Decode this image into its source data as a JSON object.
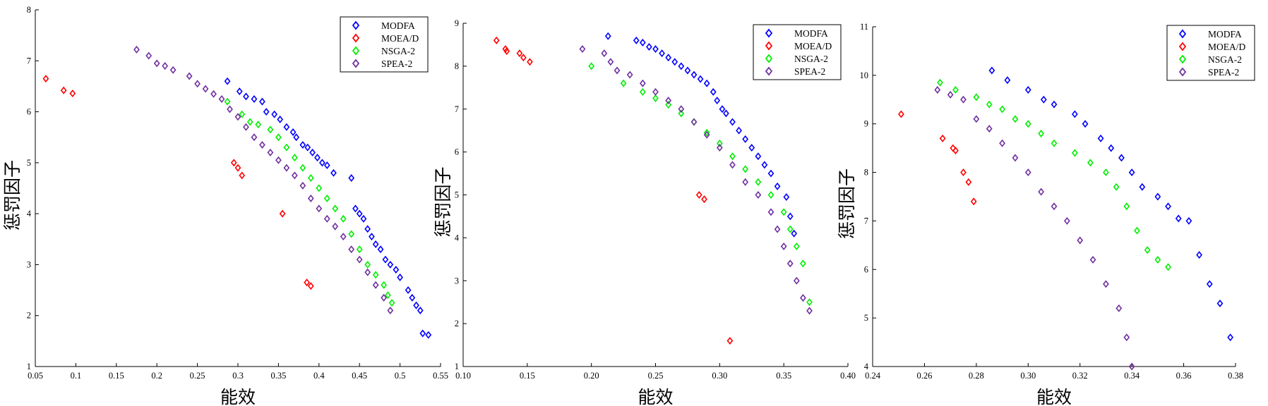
{
  "chart_data": [
    {
      "type": "scatter",
      "xlabel": "能效",
      "ylabel": "惩罚因子",
      "xlim": [
        0.05,
        0.55
      ],
      "ylim": [
        1,
        8
      ],
      "xticks": [
        "0.05",
        "0.1",
        "0.15",
        "0.2",
        "0.25",
        "0.3",
        "0.35",
        "0.4",
        "0.45",
        "0.5",
        "0.55"
      ],
      "yticks": [
        "1",
        "2",
        "3",
        "4",
        "5",
        "6",
        "7",
        "8"
      ],
      "grid": false,
      "legend": "top-right",
      "series": [
        {
          "name": "MODFA",
          "color": "#0000ff",
          "x": [
            0.287,
            0.302,
            0.31,
            0.32,
            0.33,
            0.335,
            0.345,
            0.352,
            0.36,
            0.368,
            0.372,
            0.38,
            0.386,
            0.392,
            0.398,
            0.404,
            0.41,
            0.418,
            0.44,
            0.445,
            0.45,
            0.455,
            0.46,
            0.465,
            0.47,
            0.476,
            0.482,
            0.488,
            0.495,
            0.5,
            0.51,
            0.515,
            0.52,
            0.525,
            0.528,
            0.535
          ],
          "y": [
            6.6,
            6.4,
            6.3,
            6.25,
            6.2,
            6.0,
            5.95,
            5.85,
            5.7,
            5.6,
            5.5,
            5.35,
            5.3,
            5.2,
            5.1,
            5.0,
            4.95,
            4.8,
            4.7,
            4.1,
            4.0,
            3.9,
            3.7,
            3.55,
            3.4,
            3.3,
            3.1,
            3.0,
            2.9,
            2.75,
            2.5,
            2.35,
            2.2,
            2.1,
            1.65,
            1.62
          ]
        },
        {
          "name": "MOEA/D",
          "color": "#ff0000",
          "x": [
            0.063,
            0.085,
            0.096,
            0.295,
            0.3,
            0.305,
            0.355,
            0.385,
            0.39
          ],
          "y": [
            6.65,
            6.42,
            6.36,
            5.0,
            4.9,
            4.75,
            4.0,
            2.65,
            2.58
          ]
        },
        {
          "name": "NSGA-2",
          "color": "#00ee00",
          "x": [
            0.287,
            0.305,
            0.315,
            0.325,
            0.34,
            0.35,
            0.36,
            0.37,
            0.38,
            0.39,
            0.4,
            0.41,
            0.42,
            0.43,
            0.44,
            0.45,
            0.46,
            0.47,
            0.48,
            0.485,
            0.49
          ],
          "y": [
            6.2,
            5.95,
            5.8,
            5.75,
            5.65,
            5.5,
            5.3,
            5.1,
            4.9,
            4.7,
            4.5,
            4.3,
            4.1,
            3.9,
            3.6,
            3.3,
            3.0,
            2.8,
            2.6,
            2.4,
            2.25
          ]
        },
        {
          "name": "SPEA-2",
          "color": "#7030a0",
          "x": [
            0.175,
            0.19,
            0.2,
            0.21,
            0.22,
            0.24,
            0.25,
            0.26,
            0.27,
            0.28,
            0.29,
            0.3,
            0.31,
            0.32,
            0.33,
            0.34,
            0.35,
            0.36,
            0.37,
            0.38,
            0.39,
            0.4,
            0.41,
            0.42,
            0.43,
            0.44,
            0.45,
            0.46,
            0.47,
            0.48,
            0.488
          ],
          "y": [
            7.22,
            7.1,
            6.95,
            6.9,
            6.82,
            6.7,
            6.55,
            6.45,
            6.35,
            6.25,
            6.05,
            5.9,
            5.7,
            5.5,
            5.35,
            5.2,
            5.05,
            4.9,
            4.75,
            4.55,
            4.3,
            4.1,
            3.9,
            3.75,
            3.55,
            3.3,
            3.1,
            2.85,
            2.6,
            2.35,
            2.1
          ]
        }
      ],
      "legend_entries": [
        "MODFA",
        "MOEA/D",
        "NSGA-2",
        "SPEA-2"
      ]
    },
    {
      "type": "scatter",
      "xlabel": "能效",
      "ylabel": "惩罚因子",
      "xlim": [
        0.1,
        0.4
      ],
      "ylim": [
        1,
        9
      ],
      "xticks": [
        "0.10",
        "0.15",
        "0.20",
        "0.25",
        "0.30",
        "0.35",
        "0.40"
      ],
      "yticks": [
        "1",
        "2",
        "3",
        "4",
        "5",
        "6",
        "7",
        "8",
        "9"
      ],
      "grid": false,
      "legend": "top-right",
      "series": [
        {
          "name": "MODFA",
          "color": "#0000ff",
          "x": [
            0.213,
            0.235,
            0.24,
            0.245,
            0.25,
            0.255,
            0.26,
            0.265,
            0.27,
            0.275,
            0.28,
            0.285,
            0.29,
            0.295,
            0.298,
            0.302,
            0.305,
            0.31,
            0.315,
            0.32,
            0.325,
            0.33,
            0.335,
            0.34,
            0.345,
            0.352,
            0.355,
            0.358
          ],
          "y": [
            8.7,
            8.6,
            8.55,
            8.45,
            8.4,
            8.3,
            8.2,
            8.1,
            8.0,
            7.9,
            7.8,
            7.7,
            7.6,
            7.4,
            7.2,
            7.0,
            6.9,
            6.7,
            6.5,
            6.3,
            6.1,
            5.9,
            5.7,
            5.5,
            5.2,
            4.95,
            4.5,
            4.1
          ]
        },
        {
          "name": "MOEA/D",
          "color": "#ff0000",
          "x": [
            0.126,
            0.133,
            0.134,
            0.144,
            0.147,
            0.152,
            0.284,
            0.288,
            0.308
          ],
          "y": [
            8.6,
            8.4,
            8.35,
            8.3,
            8.2,
            8.1,
            5.0,
            4.9,
            1.6
          ]
        },
        {
          "name": "NSGA-2",
          "color": "#00ee00",
          "x": [
            0.2,
            0.225,
            0.24,
            0.25,
            0.26,
            0.27,
            0.28,
            0.29,
            0.3,
            0.31,
            0.32,
            0.33,
            0.34,
            0.35,
            0.355,
            0.36,
            0.365,
            0.37
          ],
          "y": [
            8.0,
            7.6,
            7.4,
            7.25,
            7.1,
            6.9,
            6.7,
            6.45,
            6.2,
            5.9,
            5.6,
            5.3,
            5.0,
            4.6,
            4.2,
            3.8,
            3.4,
            2.5
          ]
        },
        {
          "name": "SPEA-2",
          "color": "#7030a0",
          "x": [
            0.193,
            0.21,
            0.215,
            0.22,
            0.23,
            0.24,
            0.25,
            0.26,
            0.27,
            0.28,
            0.29,
            0.3,
            0.31,
            0.32,
            0.33,
            0.34,
            0.345,
            0.35,
            0.355,
            0.36,
            0.365,
            0.37
          ],
          "y": [
            8.4,
            8.3,
            8.1,
            7.9,
            7.8,
            7.6,
            7.4,
            7.2,
            7.0,
            6.7,
            6.4,
            6.1,
            5.7,
            5.3,
            5.0,
            4.6,
            4.2,
            3.8,
            3.4,
            3.0,
            2.6,
            2.3
          ]
        }
      ],
      "legend_entries": [
        "MODFA",
        "MOEA/D",
        "NSGA-2",
        "SPEA-2"
      ]
    },
    {
      "type": "scatter",
      "xlabel": "能效",
      "ylabel": "惩罚因子",
      "xlim": [
        0.24,
        0.38
      ],
      "ylim": [
        4,
        11
      ],
      "xticks": [
        "0.24",
        "0.26",
        "0.28",
        "0.30",
        "0.32",
        "0.34",
        "0.36",
        "0.38"
      ],
      "yticks": [
        "4",
        "5",
        "6",
        "7",
        "8",
        "9",
        "10",
        "11"
      ],
      "grid": false,
      "legend": "top-right",
      "series": [
        {
          "name": "MODFA",
          "color": "#0000ff",
          "x": [
            0.286,
            0.292,
            0.3,
            0.306,
            0.31,
            0.318,
            0.322,
            0.328,
            0.332,
            0.336,
            0.34,
            0.344,
            0.35,
            0.354,
            0.358,
            0.362,
            0.366,
            0.37,
            0.374,
            0.378
          ],
          "y": [
            10.1,
            9.9,
            9.7,
            9.5,
            9.4,
            9.2,
            9.0,
            8.7,
            8.5,
            8.3,
            8.0,
            7.7,
            7.5,
            7.3,
            7.05,
            7.0,
            6.3,
            5.7,
            5.3,
            4.6
          ]
        },
        {
          "name": "MOEA/D",
          "color": "#ff0000",
          "x": [
            0.251,
            0.267,
            0.271,
            0.272,
            0.275,
            0.277,
            0.279
          ],
          "y": [
            9.2,
            8.7,
            8.5,
            8.45,
            8.0,
            7.8,
            7.4
          ]
        },
        {
          "name": "NSGA-2",
          "color": "#00ee00",
          "x": [
            0.266,
            0.272,
            0.28,
            0.285,
            0.29,
            0.295,
            0.3,
            0.305,
            0.31,
            0.318,
            0.324,
            0.33,
            0.334,
            0.338,
            0.342,
            0.346,
            0.35,
            0.354
          ],
          "y": [
            9.85,
            9.7,
            9.55,
            9.4,
            9.3,
            9.1,
            9.0,
            8.8,
            8.6,
            8.4,
            8.2,
            8.0,
            7.7,
            7.3,
            6.8,
            6.4,
            6.2,
            6.05
          ]
        },
        {
          "name": "SPEA-2",
          "color": "#7030a0",
          "x": [
            0.265,
            0.27,
            0.275,
            0.28,
            0.285,
            0.29,
            0.295,
            0.3,
            0.305,
            0.31,
            0.315,
            0.32,
            0.325,
            0.33,
            0.335,
            0.338,
            0.34
          ],
          "y": [
            9.7,
            9.6,
            9.5,
            9.1,
            8.9,
            8.6,
            8.3,
            8.0,
            7.6,
            7.3,
            7.0,
            6.6,
            6.2,
            5.7,
            5.2,
            4.6,
            4.0
          ]
        }
      ],
      "legend_entries": [
        "MODFA",
        "MOEA/D",
        "NSGA-2",
        "SPEA-2"
      ]
    }
  ]
}
